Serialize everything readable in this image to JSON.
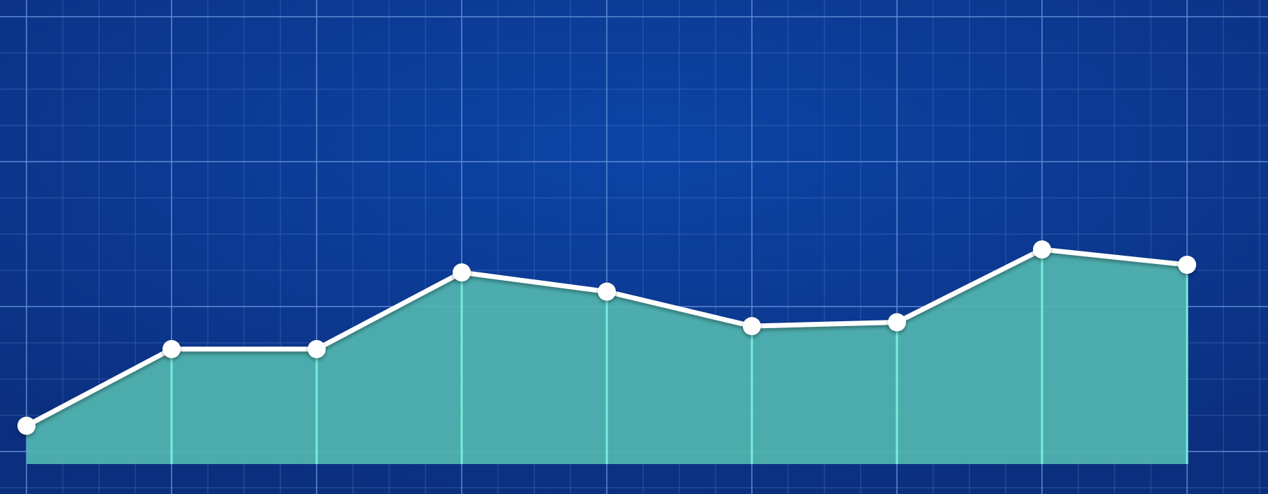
{
  "chart_data": {
    "type": "area",
    "x": [
      1,
      2,
      3,
      4,
      5,
      6,
      7,
      8,
      9
    ],
    "series": [
      {
        "values": [
          1.0,
          3.0,
          3.0,
          5.0,
          4.5,
          3.6,
          3.7,
          5.6,
          5.2
        ]
      }
    ],
    "ylim": [
      0,
      10
    ],
    "grid": true,
    "colors": {
      "background": "#0b2f7e",
      "background_center": "#0c44a6",
      "grid_line": "#5f8bd4",
      "area_fill": "#52b6b0",
      "line": "#ffffff",
      "marker": "#ffffff",
      "drop_line": "#7ff3e0"
    }
  }
}
